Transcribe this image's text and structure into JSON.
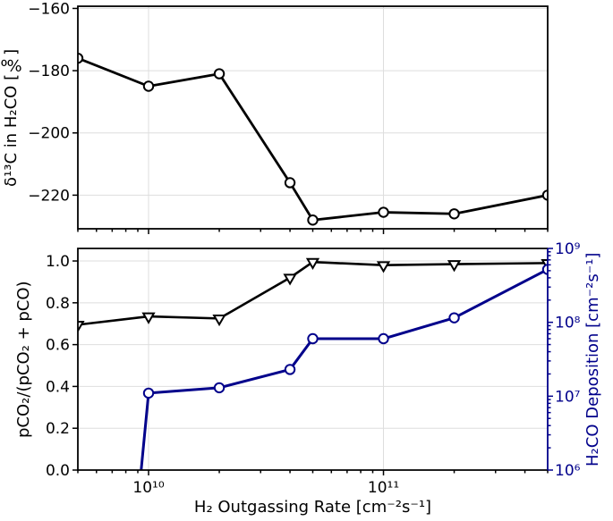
{
  "colors": {
    "primary": "#000000",
    "secondary": "#00008b",
    "grid": "#dedede",
    "background": "#ffffff"
  },
  "chart_data": [
    {
      "id": "top-panel",
      "type": "line",
      "xscale": "log",
      "xlim": [
        5000000000.0,
        500000000000.0
      ],
      "ylim": [
        -230.8,
        -159.3
      ],
      "ylabel": "δ¹³C in H₂CO [‰]",
      "grid": true,
      "xticks": {
        "values": [
          10000000000.0,
          100000000000.0
        ],
        "labels": [
          "10¹⁰",
          "10¹¹"
        ],
        "show_labels": false
      },
      "yticks": {
        "values": [
          -160,
          -180,
          -200,
          -220
        ],
        "labels": [
          "−160",
          "−180",
          "−200",
          "−220"
        ]
      },
      "series": [
        {
          "name": "δ¹³C in H₂CO",
          "color": "#000000",
          "marker": "circle",
          "x": [
            5000000000.0,
            10000000000.0,
            20000000000.0,
            40000000000.0,
            50000000000.0,
            100000000000.0,
            200000000000.0,
            500000000000.0
          ],
          "y": [
            -176,
            -185,
            -181,
            -216,
            -228,
            -225.5,
            -226,
            -220
          ]
        }
      ]
    },
    {
      "id": "bottom-panel",
      "type": "line",
      "xscale": "log",
      "xlim": [
        5000000000.0,
        500000000000.0
      ],
      "xlabel": "H₂ Outgassing Rate [cm⁻²s⁻¹]",
      "ylabel_left": "pCO₂/(pCO₂ + pCO)",
      "ylabel_right": "H₂CO Deposition [cm⁻²s⁻¹]",
      "ylim_left": [
        0,
        1.06
      ],
      "ylim_right": [
        1000000.0,
        1000000000.0
      ],
      "yscale_right": "log",
      "grid": true,
      "xticks": {
        "values": [
          10000000000.0,
          100000000000.0
        ],
        "labels": [
          "10¹⁰",
          "10¹¹"
        ],
        "show_labels": true
      },
      "left_yticks": {
        "values": [
          0,
          0.2,
          0.4,
          0.6,
          0.8,
          1.0
        ],
        "labels": [
          "0.0",
          "0.2",
          "0.4",
          "0.6",
          "0.8",
          "1.0"
        ]
      },
      "right_yticks": {
        "values": [
          1000000.0,
          10000000.0,
          100000000.0,
          1000000000.0
        ],
        "labels": [
          "10⁶",
          "10⁷",
          "10⁸",
          "10⁹"
        ]
      },
      "series": [
        {
          "name": "pCO₂/(pCO₂ + pCO)",
          "axis": "left",
          "color": "#000000",
          "marker": "triangle-down",
          "x": [
            5000000000.0,
            10000000000.0,
            20000000000.0,
            40000000000.0,
            50000000000.0,
            100000000000.0,
            200000000000.0,
            500000000000.0
          ],
          "y": [
            0.695,
            0.735,
            0.725,
            0.92,
            0.995,
            0.98,
            0.985,
            0.99
          ]
        },
        {
          "name": "H₂CO Deposition",
          "axis": "right",
          "color": "#00008b",
          "marker": "circle",
          "line_entry": {
            "x": 9300000000.0,
            "y": 1000000.0
          },
          "x": [
            10000000000.0,
            20000000000.0,
            40000000000.0,
            50000000000.0,
            100000000000.0,
            200000000000.0,
            500000000000.0
          ],
          "y": [
            11000000.0,
            13000000.0,
            23000000.0,
            60000000.0,
            60000000.0,
            115000000.0,
            520000000.0
          ]
        }
      ]
    }
  ]
}
